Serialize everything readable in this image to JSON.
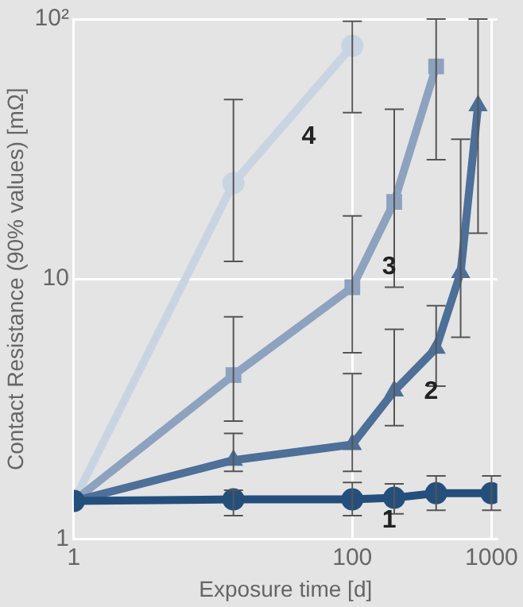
{
  "chart_data": {
    "type": "line",
    "xlabel": "Exposure time [d]",
    "ylabel": "Contact Resistance (90% values) [mΩ]",
    "log": "xy",
    "grid": true,
    "legend": false,
    "line_style": "solid",
    "xlim": [
      1,
      1100
    ],
    "xticks": [
      1,
      100,
      1000
    ],
    "ylim": [
      1,
      100
    ],
    "yticks": [
      1,
      10,
      {
        "value": 100,
        "label": "10²"
      }
    ],
    "series": [
      {
        "name": "1",
        "color": "#244f7c",
        "marker": "circle",
        "x": [
          1,
          14,
          100,
          200,
          400,
          1000
        ],
        "values": [
          1.4,
          1.42,
          1.42,
          1.44,
          1.5,
          1.5
        ],
        "errors": [
          null,
          [
            1.23,
            1.54
          ],
          [
            1.23,
            1.65
          ],
          [
            1.25,
            1.63
          ],
          [
            1.29,
            1.75
          ],
          [
            1.29,
            1.75
          ]
        ]
      },
      {
        "name": "2",
        "color": "#4d6f98",
        "marker": "triangle",
        "x": [
          1,
          14,
          100,
          200,
          400,
          600,
          800
        ],
        "values": [
          1.4,
          2.01,
          2.31,
          3.71,
          5.42,
          10.6,
          46.4
        ],
        "errors": [
          null,
          [
            1.82,
            2.55
          ],
          [
            1.82,
            4.33
          ],
          [
            2.73,
            6.4
          ],
          [
            3.87,
            7.9
          ],
          [
            5.97,
            34.5
          ],
          [
            15,
            100
          ]
        ]
      },
      {
        "name": "3",
        "color": "#8da2bf",
        "marker": "square",
        "x": [
          1,
          14,
          100,
          200,
          400
        ],
        "values": [
          1.4,
          4.27,
          9.3,
          19.8,
          65.7
        ],
        "errors": [
          null,
          [
            2.84,
            7.15
          ],
          [
            5.2,
            17.5
          ],
          [
            9.3,
            45
          ],
          [
            28.8,
            100
          ]
        ]
      },
      {
        "name": "4",
        "color": "#c9d4e2",
        "marker": "circle",
        "x": [
          1,
          14,
          100
        ],
        "values": [
          1.4,
          23.4,
          78.8
        ],
        "errors": [
          null,
          [
            11.7,
            49
          ],
          [
            43.7,
            98
          ]
        ]
      }
    ]
  }
}
